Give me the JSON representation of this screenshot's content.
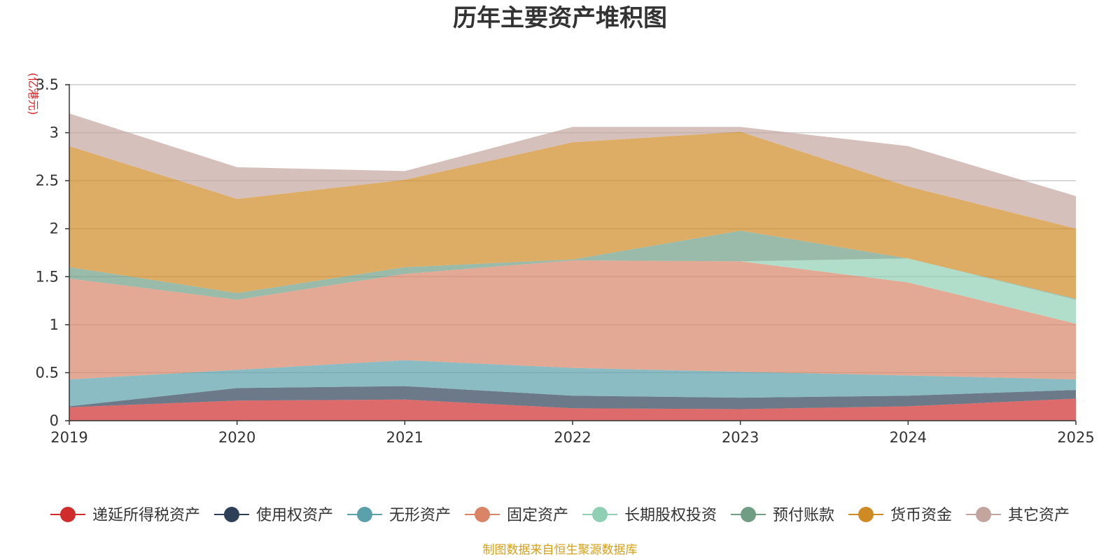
{
  "chart_data": {
    "type": "area",
    "stacked": true,
    "title": "历年主要资产堆积图",
    "unit_label": "(亿港元)",
    "source_note": "制图数据来自恒生聚源数据库",
    "x": [
      "2019",
      "2020",
      "2021",
      "2022",
      "2023",
      "2024",
      "2025"
    ],
    "ylim": [
      0,
      3.5
    ],
    "yticks": [
      "0",
      "0.5",
      "1",
      "1.5",
      "2",
      "2.5",
      "3",
      "3.5"
    ],
    "ytick_values": [
      0,
      0.5,
      1,
      1.5,
      2,
      2.5,
      3,
      3.5
    ],
    "grid": true,
    "legend_position": "bottom",
    "series": [
      {
        "name": "递延所得税资产",
        "color": "#d02c2c",
        "values": [
          0.14,
          0.21,
          0.22,
          0.13,
          0.12,
          0.15,
          0.23
        ]
      },
      {
        "name": "使用权资产",
        "color": "#2e4057",
        "values": [
          0.01,
          0.13,
          0.14,
          0.13,
          0.12,
          0.11,
          0.09
        ]
      },
      {
        "name": "无形资产",
        "color": "#5aa0aa",
        "values": [
          0.28,
          0.19,
          0.27,
          0.29,
          0.27,
          0.21,
          0.11
        ]
      },
      {
        "name": "固定资产",
        "color": "#d98467",
        "values": [
          1.05,
          0.73,
          0.9,
          1.12,
          1.15,
          0.97,
          0.58
        ]
      },
      {
        "name": "长期股权投资",
        "color": "#8fd0b4",
        "values": [
          0.0,
          0.0,
          0.0,
          0.0,
          0.0,
          0.25,
          0.25
        ]
      },
      {
        "name": "预付账款",
        "color": "#6f9e84",
        "values": [
          0.12,
          0.07,
          0.07,
          0.01,
          0.32,
          0.0,
          0.01
        ]
      },
      {
        "name": "货币资金",
        "color": "#d08a23",
        "values": [
          1.26,
          0.98,
          0.91,
          1.22,
          1.03,
          0.75,
          0.73
        ]
      },
      {
        "name": "其它资产",
        "color": "#c4a59e",
        "values": [
          0.34,
          0.33,
          0.09,
          0.16,
          0.05,
          0.42,
          0.34
        ]
      }
    ]
  }
}
